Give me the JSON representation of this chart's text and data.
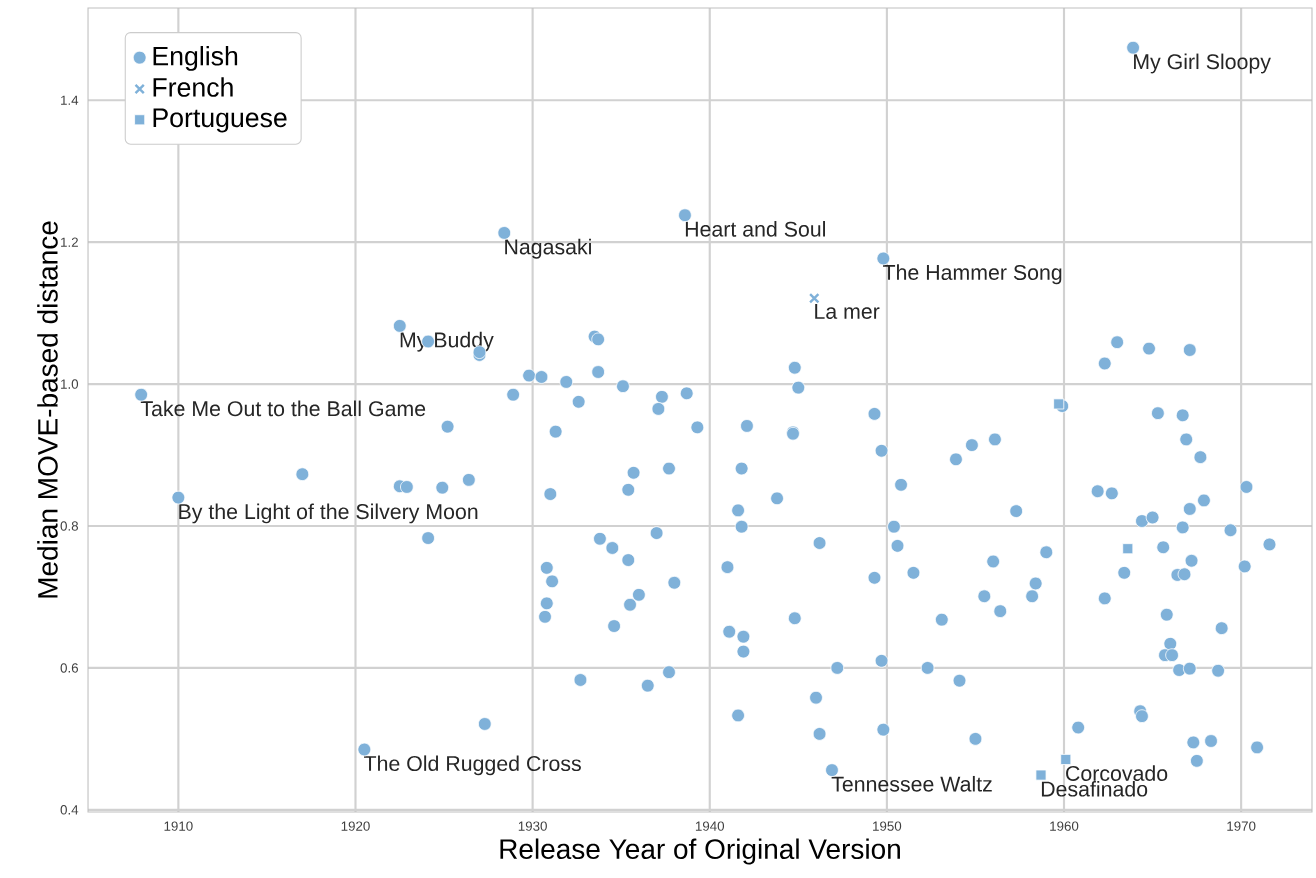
{
  "chart_data": {
    "type": "scatter",
    "xlabel": "Release Year of Original Version",
    "ylabel": "Median MOVE-based distance",
    "xlim": [
      1904.9,
      1974
    ],
    "ylim": [
      0.397,
      1.53
    ],
    "xticks": [
      1910,
      1920,
      1930,
      1940,
      1950,
      1960,
      1970
    ],
    "yticks": [
      {
        "value": 0.4,
        "label": "0.4"
      },
      {
        "value": 0.6,
        "label": "0.6"
      },
      {
        "value": 0.8,
        "label": "0.8"
      },
      {
        "value": 1.0,
        "label": "1.0"
      },
      {
        "value": 1.2,
        "label": "1.2"
      },
      {
        "value": 1.4,
        "label": "1.4"
      }
    ],
    "grid": true,
    "legend": "top left",
    "series": [
      {
        "name": "English",
        "color": "#7fb1d9",
        "marker": "circle",
        "x": [
          1907.9,
          1910.0,
          1917.0,
          1922.5,
          1924.1,
          1927.0,
          1927.0,
          1925.2,
          1922.5,
          1922.9,
          1924.9,
          1926.4,
          1924.1,
          1927.3,
          1920.5,
          1928.4,
          1928.9,
          1929.8,
          1930.5,
          1931.9,
          1933.5,
          1933.7,
          1933.7,
          1935.1,
          1932.6,
          1937.3,
          1938.7,
          1937.1,
          1931.3,
          1939.3,
          1942.1,
          1935.7,
          1937.7,
          1935.4,
          1931.0,
          1941.8,
          1941.6,
          1941.8,
          1943.8,
          1944.8,
          1945.0,
          1944.7,
          1944.7,
          1938.6,
          1949.8,
          1949.3,
          1949.7,
          1950.8,
          1950.4,
          1950.6,
          1951.5,
          1949.3,
          1933.8,
          1934.5,
          1935.4,
          1937.0,
          1930.8,
          1931.1,
          1930.8,
          1930.7,
          1936.0,
          1935.5,
          1934.6,
          1938.0,
          1941.0,
          1941.1,
          1941.9,
          1941.9,
          1944.8,
          1946.2,
          1932.7,
          1936.5,
          1937.7,
          1941.6,
          1946.0,
          1947.2,
          1949.7,
          1946.2,
          1949.8,
          1946.9,
          1963.9,
          1963.0,
          1964.8,
          1967.1,
          1962.3,
          1959.9,
          1965.3,
          1966.7,
          1966.9,
          1967.7,
          1953.9,
          1954.8,
          1956.1,
          1961.9,
          1962.7,
          1957.3,
          1970.3,
          1967.9,
          1967.1,
          1964.4,
          1965.0,
          1966.7,
          1969.4,
          1971.6,
          1965.6,
          1959.0,
          1956.0,
          1967.2,
          1970.2,
          1963.4,
          1966.4,
          1966.8,
          1958.4,
          1958.2,
          1955.5,
          1956.4,
          1962.3,
          1953.1,
          1965.8,
          1968.9,
          1966.0,
          1965.7,
          1966.1,
          1966.5,
          1967.1,
          1968.7,
          1952.3,
          1954.1,
          1964.3,
          1964.4,
          1960.8,
          1955.0,
          1967.3,
          1968.3,
          1970.9,
          1967.5
        ],
        "values": [
          0.985,
          0.84,
          0.873,
          1.082,
          1.06,
          1.041,
          1.045,
          0.94,
          0.856,
          0.855,
          0.854,
          0.865,
          0.783,
          0.521,
          0.485,
          1.213,
          0.985,
          1.012,
          1.01,
          1.003,
          1.067,
          1.063,
          1.017,
          0.997,
          0.975,
          0.982,
          0.987,
          0.965,
          0.933,
          0.939,
          0.941,
          0.875,
          0.881,
          0.851,
          0.845,
          0.881,
          0.822,
          0.799,
          0.839,
          1.023,
          0.995,
          0.932,
          0.93,
          1.238,
          1.177,
          0.958,
          0.906,
          0.858,
          0.799,
          0.772,
          0.734,
          0.727,
          0.782,
          0.769,
          0.752,
          0.79,
          0.741,
          0.722,
          0.691,
          0.672,
          0.703,
          0.689,
          0.659,
          0.72,
          0.742,
          0.651,
          0.644,
          0.623,
          0.67,
          0.776,
          0.583,
          0.575,
          0.594,
          0.533,
          0.558,
          0.6,
          0.61,
          0.507,
          0.513,
          0.456,
          1.474,
          1.059,
          1.05,
          1.048,
          1.029,
          0.969,
          0.959,
          0.956,
          0.922,
          0.897,
          0.894,
          0.914,
          0.922,
          0.849,
          0.846,
          0.821,
          0.855,
          0.836,
          0.824,
          0.807,
          0.812,
          0.798,
          0.794,
          0.774,
          0.77,
          0.763,
          0.75,
          0.751,
          0.743,
          0.734,
          0.731,
          0.732,
          0.719,
          0.701,
          0.701,
          0.68,
          0.698,
          0.668,
          0.675,
          0.656,
          0.634,
          0.618,
          0.618,
          0.597,
          0.599,
          0.596,
          0.6,
          0.582,
          0.539,
          0.532,
          0.516,
          0.5,
          0.495,
          0.497,
          0.488,
          0.469
        ]
      },
      {
        "name": "French",
        "color": "#7fb1d9",
        "marker": "cross",
        "x": [
          1945.9
        ],
        "values": [
          1.121
        ]
      },
      {
        "name": "Portuguese",
        "color": "#7fb1d9",
        "marker": "square",
        "x": [
          1959.7,
          1963.6,
          1960.1,
          1958.7
        ],
        "values": [
          0.972,
          0.768,
          0.471,
          0.449
        ]
      }
    ],
    "annotations": [
      {
        "text": "My Girl Sloopy",
        "x": 1963.9,
        "y": 1.474
      },
      {
        "text": "Nagasaki",
        "x": 1928.4,
        "y": 1.213
      },
      {
        "text": "Heart and Soul",
        "x": 1938.6,
        "y": 1.238
      },
      {
        "text": "The Hammer Song",
        "x": 1949.8,
        "y": 1.177
      },
      {
        "text": "La mer",
        "x": 1945.9,
        "y": 1.121
      },
      {
        "text": "My Buddy",
        "x": 1922.5,
        "y": 1.082
      },
      {
        "text": "Take Me Out to the Ball Game",
        "x": 1907.9,
        "y": 0.985
      },
      {
        "text": "By the Light of the Silvery Moon",
        "x": 1910.0,
        "y": 0.84
      },
      {
        "text": "The Old Rugged Cross",
        "x": 1920.5,
        "y": 0.485
      },
      {
        "text": "Tennessee Waltz",
        "x": 1946.9,
        "y": 0.456
      },
      {
        "text": "Corcovado",
        "x": 1960.1,
        "y": 0.471
      },
      {
        "text": "Desafinado",
        "x": 1958.7,
        "y": 0.449
      }
    ]
  }
}
